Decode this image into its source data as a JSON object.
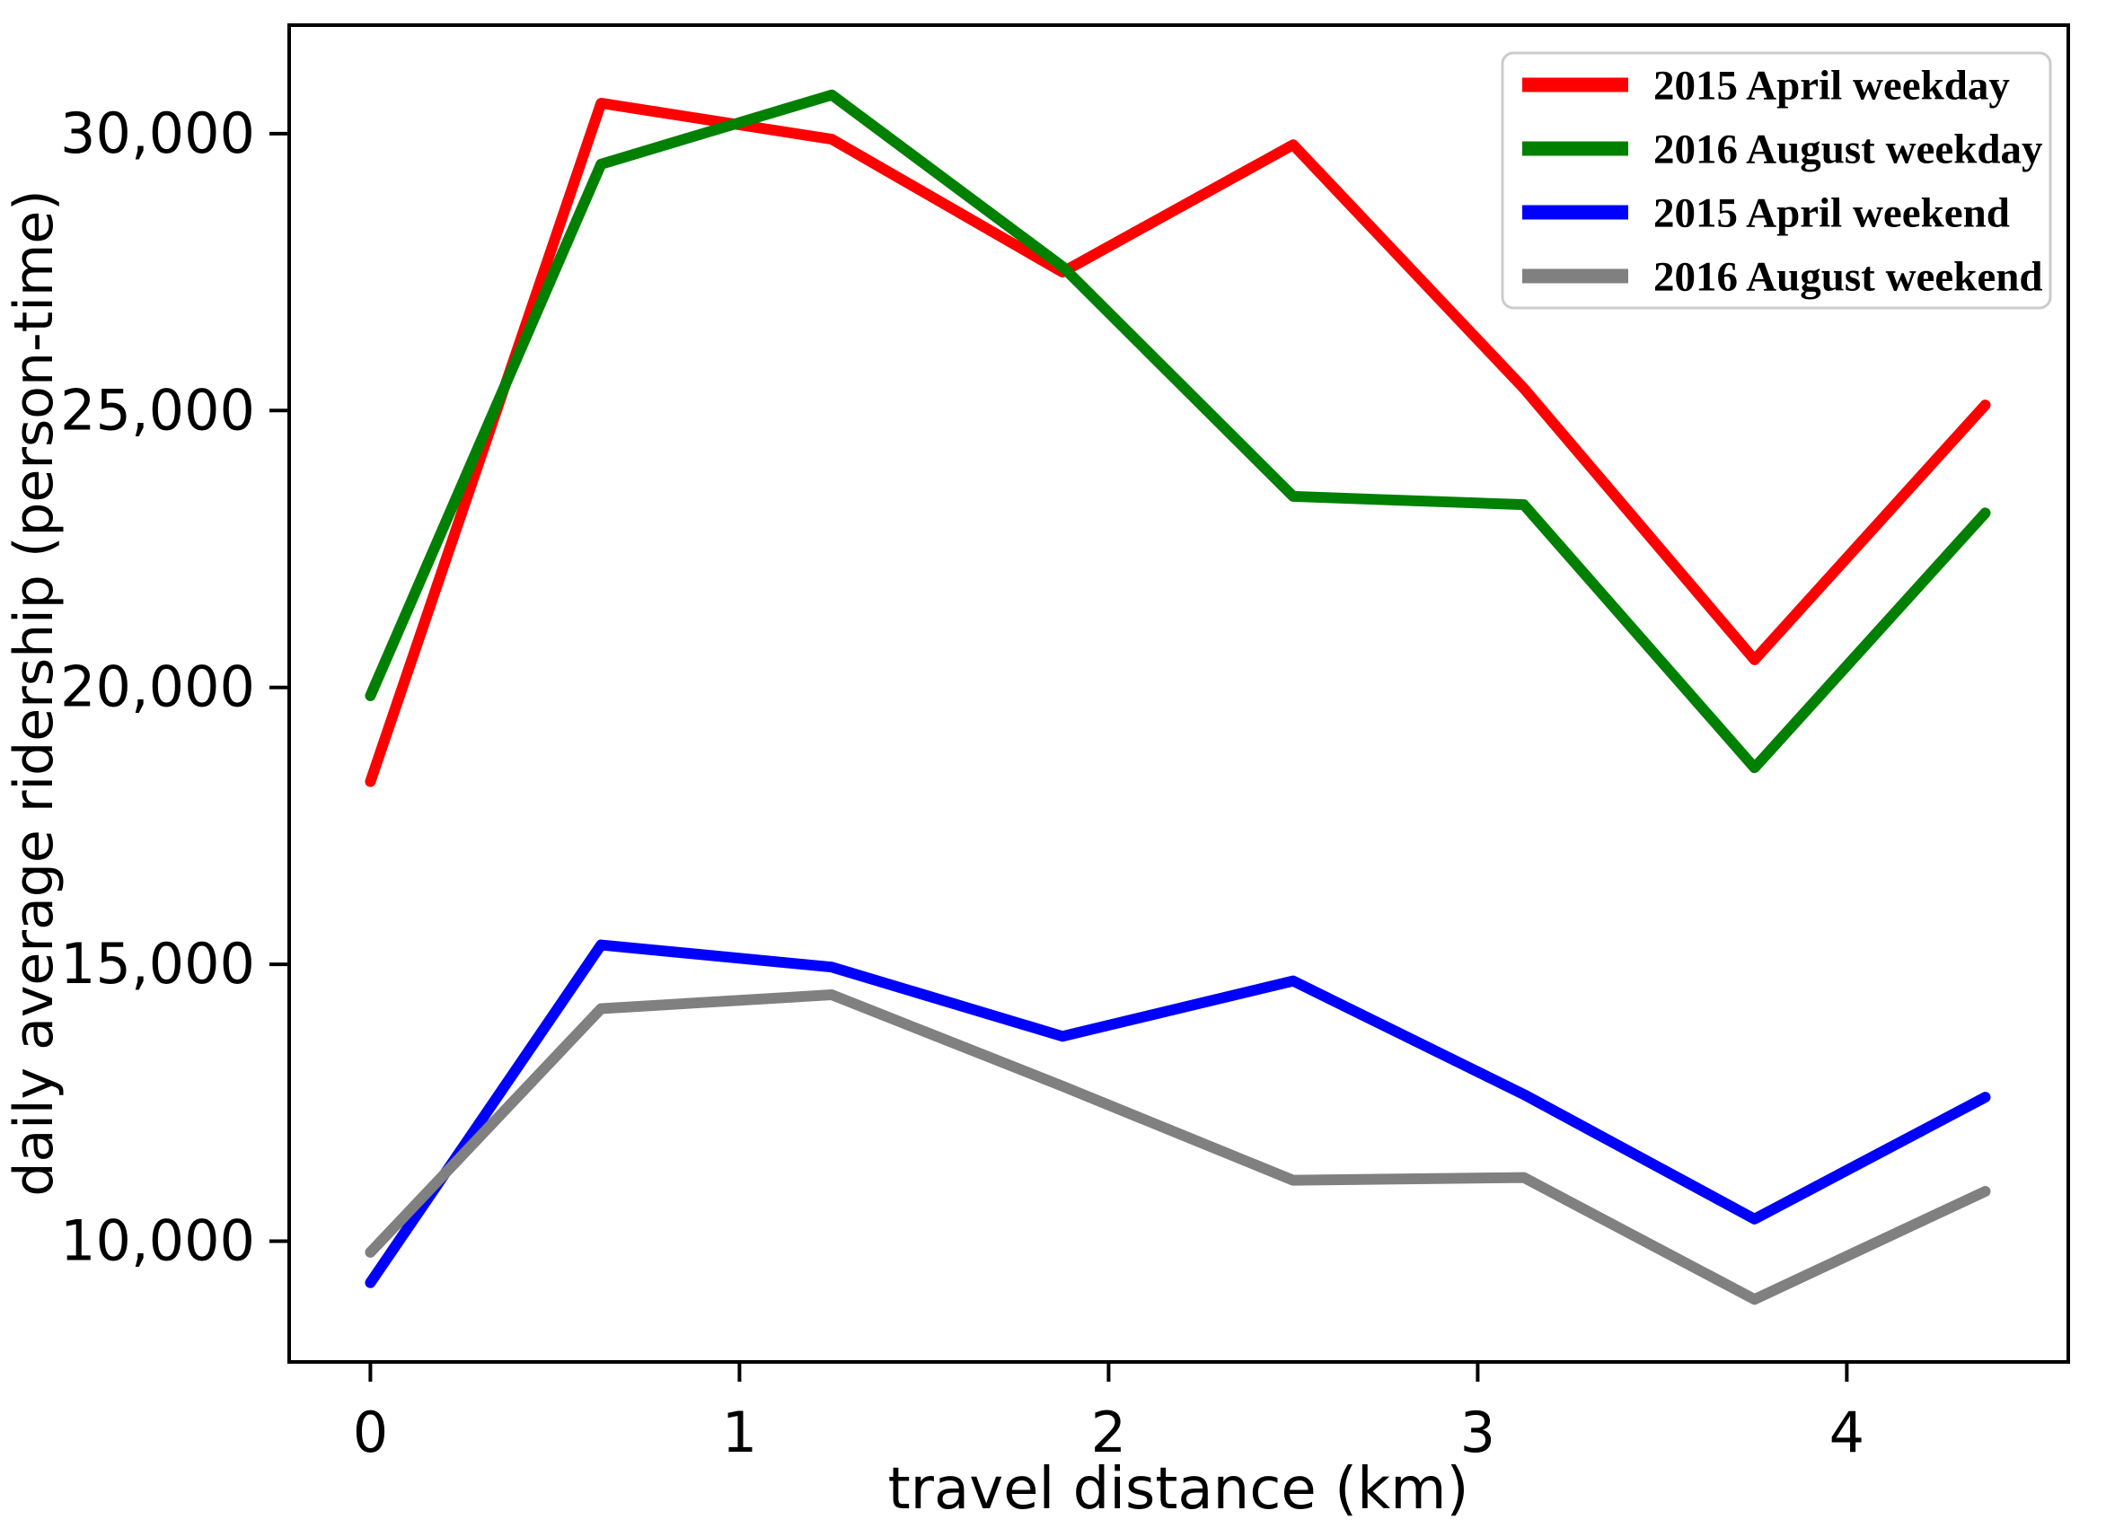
{
  "chart_data": {
    "type": "line",
    "title": "",
    "xlabel": "travel distance (km)",
    "ylabel": "daily average ridership (person-time)",
    "x": [
      0,
      0.625,
      1.25,
      1.875,
      2.5,
      3.125,
      3.75,
      4.375
    ],
    "xlim": [
      -0.22,
      4.6
    ],
    "ylim": [
      7820,
      31960
    ],
    "xticks": [
      0,
      1,
      2,
      3,
      4
    ],
    "xtick_labels": [
      "0",
      "1",
      "2",
      "3",
      "4"
    ],
    "yticks": [
      10000,
      15000,
      20000,
      25000,
      30000
    ],
    "ytick_labels": [
      "10,000",
      "15,000",
      "20,000",
      "25,000",
      "30,000"
    ],
    "grid": false,
    "legend_position": "upper right",
    "series": [
      {
        "name": "2015 April weekday",
        "color": "#ff0000",
        "values": [
          18300,
          30550,
          29900,
          27500,
          29800,
          25400,
          20500,
          25100
        ]
      },
      {
        "name": "2016 August weekday",
        "color": "#008000",
        "values": [
          19850,
          29450,
          30700,
          27600,
          23450,
          23300,
          18550,
          23150
        ]
      },
      {
        "name": "2015 April weekend",
        "color": "#0000ff",
        "values": [
          9250,
          15350,
          14950,
          13700,
          14700,
          12650,
          10400,
          12600
        ]
      },
      {
        "name": "2016 August weekend",
        "color": "#808080",
        "values": [
          9800,
          14200,
          14450,
          12800,
          11100,
          11150,
          8950,
          10900
        ]
      }
    ]
  }
}
